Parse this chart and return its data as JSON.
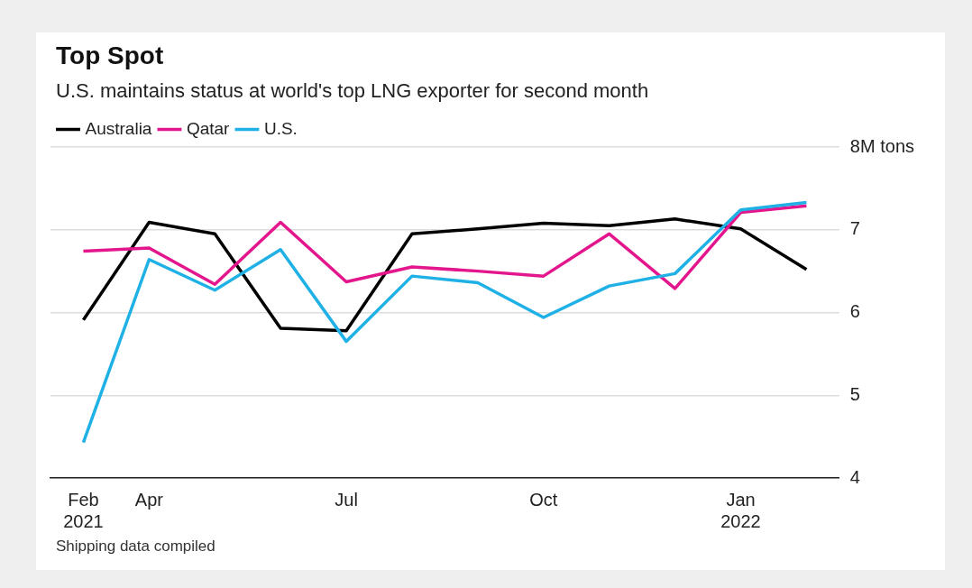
{
  "chart_data": {
    "type": "line",
    "title": "Top Spot",
    "subtitle": "U.S. maintains status at world's top LNG exporter for second month",
    "categories": [
      "Feb\n2021",
      "Apr",
      null,
      null,
      "Jul",
      null,
      null,
      "Oct",
      null,
      null,
      "Jan\n2022",
      null
    ],
    "series": [
      {
        "name": "Australia",
        "color": "#000000",
        "values": [
          5.91,
          7.09,
          6.95,
          5.81,
          5.78,
          6.95,
          7.01,
          7.08,
          7.05,
          7.13,
          7.01,
          6.52
        ]
      },
      {
        "name": "Qatar",
        "color": "#e4168d",
        "values": [
          6.74,
          6.78,
          6.34,
          7.09,
          6.37,
          6.55,
          6.5,
          6.44,
          6.95,
          6.29,
          7.21,
          7.29
        ]
      },
      {
        "name": "U.S.",
        "color": "#1fb1e6",
        "values": [
          4.43,
          6.64,
          6.27,
          6.76,
          5.65,
          6.44,
          6.36,
          5.94,
          6.32,
          6.47,
          7.24,
          7.33
        ]
      }
    ],
    "ylim": [
      4,
      8
    ],
    "yticks": [
      4,
      5,
      6,
      7,
      {
        "value": 8,
        "label": "8M tons"
      }
    ],
    "grid": "y",
    "legend": "top left",
    "marker": "none",
    "line_style": "solid",
    "annotations": [
      "Shipping data compiled"
    ]
  }
}
